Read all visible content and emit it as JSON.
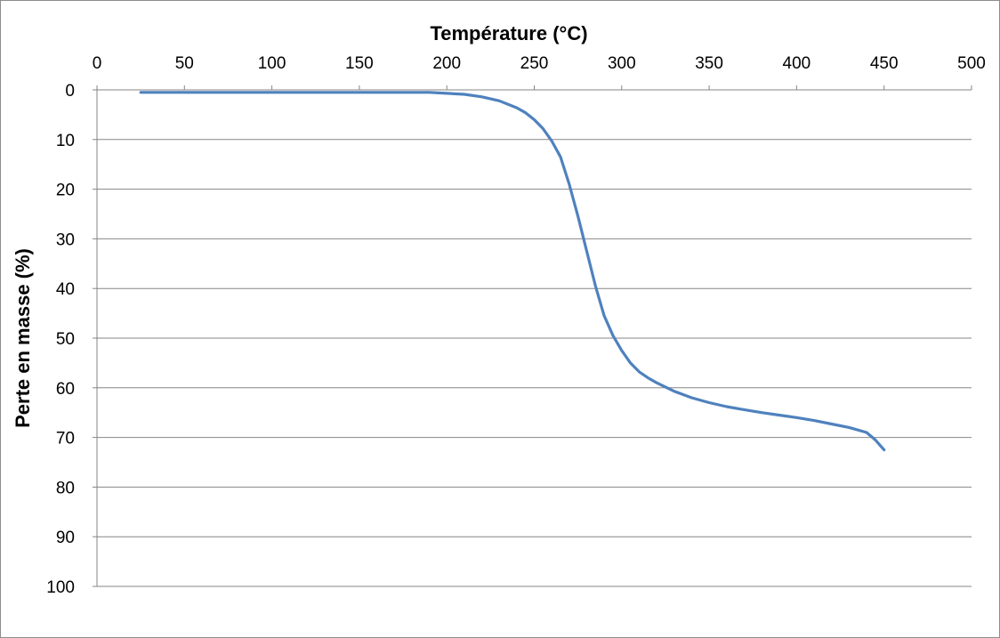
{
  "chart_data": {
    "type": "line",
    "title": "",
    "xlabel": "Température (°C)",
    "ylabel": "Perte en masse (%)",
    "xlim": [
      0,
      500
    ],
    "ylim": [
      0,
      100
    ],
    "x_axis_position": "top",
    "y_axis_inverted": true,
    "x_ticks": [
      "0",
      "50",
      "100",
      "150",
      "200",
      "250",
      "300",
      "350",
      "400",
      "450",
      "500"
    ],
    "y_ticks": [
      "0",
      "10",
      "20",
      "30",
      "40",
      "50",
      "60",
      "70",
      "80",
      "90",
      "100"
    ],
    "grid": "horizontal",
    "series": [
      {
        "name": "Perte en masse",
        "color": "#4F81BD",
        "x": [
          25,
          50,
          100,
          150,
          190,
          200,
          210,
          220,
          230,
          240,
          245,
          250,
          255,
          260,
          265,
          270,
          275,
          280,
          285,
          290,
          295,
          300,
          305,
          310,
          315,
          320,
          330,
          340,
          350,
          360,
          370,
          380,
          390,
          400,
          410,
          420,
          430,
          440,
          445,
          450
        ],
        "y": [
          0.5,
          0.5,
          0.5,
          0.5,
          0.5,
          0.7,
          0.9,
          1.4,
          2.2,
          3.6,
          4.6,
          6.0,
          7.8,
          10.3,
          13.5,
          19.0,
          25.5,
          32.5,
          39.5,
          45.5,
          49.5,
          52.5,
          55.0,
          56.8,
          58.0,
          59.0,
          60.7,
          62.0,
          63.0,
          63.8,
          64.4,
          65.0,
          65.5,
          66.0,
          66.6,
          67.3,
          68.0,
          69.0,
          70.5,
          72.5
        ]
      }
    ]
  }
}
